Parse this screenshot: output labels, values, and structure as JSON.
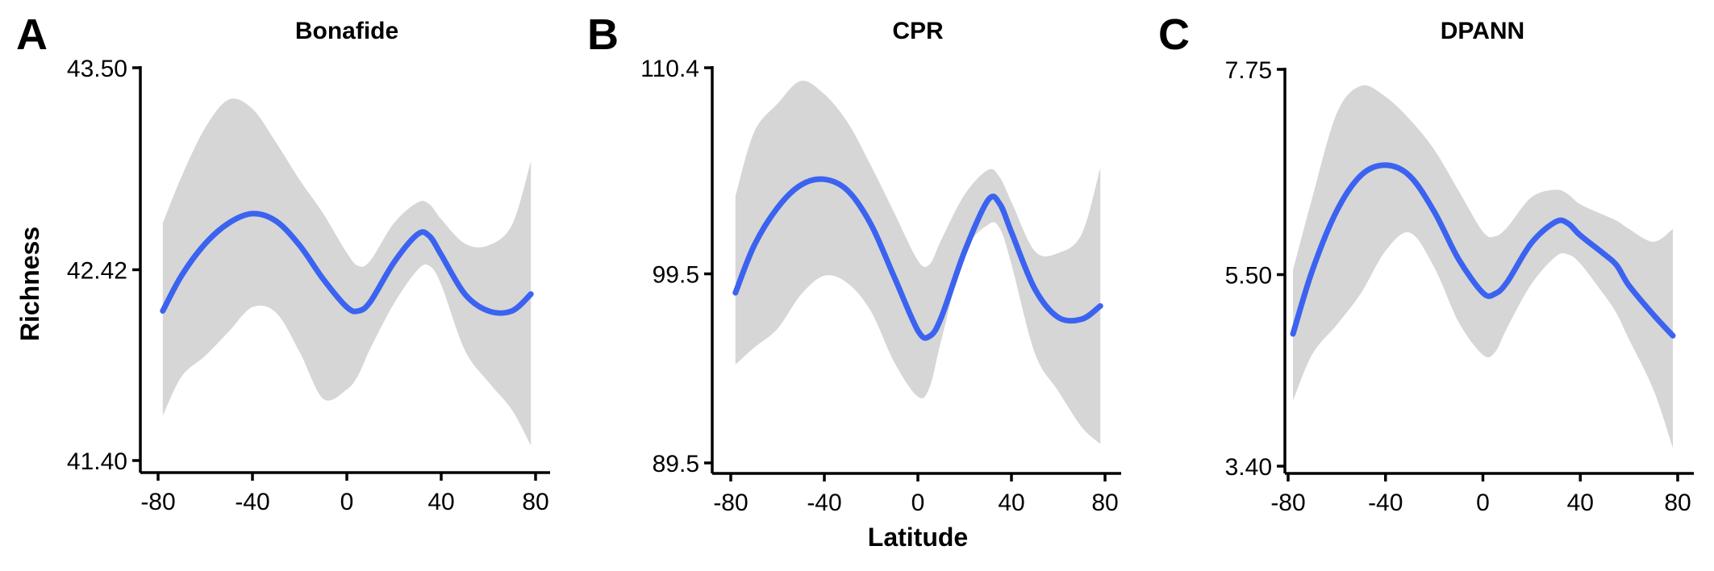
{
  "figure": {
    "xlabel": "Latitude",
    "ylabel": "Richness"
  },
  "chart_data": [
    {
      "type": "line",
      "panel": "A",
      "title": "Bonafide",
      "xlim": [
        -80,
        80
      ],
      "xticks": [
        -80,
        -40,
        0,
        40,
        80
      ],
      "xtick_labels": [
        "-80",
        "-40",
        "0",
        "40",
        "80"
      ],
      "ylim": [
        41.4,
        43.5
      ],
      "yticks": [
        41.4,
        42.42,
        43.5
      ],
      "ytick_labels": [
        "41.40",
        "42.42",
        "43.50"
      ],
      "grid": false,
      "x": [
        -78,
        -70,
        -60,
        -50,
        -40,
        -30,
        -20,
        -10,
        0,
        5,
        10,
        20,
        30,
        35,
        40,
        50,
        60,
        70,
        78
      ],
      "y": [
        42.2,
        42.39,
        42.56,
        42.67,
        42.72,
        42.68,
        42.55,
        42.37,
        42.22,
        42.2,
        42.25,
        42.46,
        42.61,
        42.6,
        42.5,
        42.29,
        42.2,
        42.2,
        42.29
      ],
      "upper": [
        42.67,
        42.92,
        43.18,
        43.33,
        43.28,
        43.1,
        42.9,
        42.72,
        42.51,
        42.44,
        42.47,
        42.67,
        42.78,
        42.77,
        42.69,
        42.56,
        42.55,
        42.66,
        43.0
      ],
      "lower": [
        41.64,
        41.85,
        41.96,
        42.09,
        42.22,
        42.19,
        41.98,
        41.73,
        41.78,
        41.86,
        42.0,
        42.24,
        42.42,
        42.44,
        42.34,
        41.99,
        41.82,
        41.67,
        41.48
      ]
    },
    {
      "type": "line",
      "panel": "B",
      "title": "CPR",
      "xlim": [
        -80,
        80
      ],
      "xticks": [
        -80,
        -40,
        0,
        40,
        80
      ],
      "xtick_labels": [
        "-80",
        "-40",
        "0",
        "40",
        "80"
      ],
      "ylim": [
        89.5,
        110.4
      ],
      "yticks": [
        89.5,
        99.5,
        110.4
      ],
      "ytick_labels": [
        "89.5",
        "99.5",
        "110.4"
      ],
      "grid": false,
      "x": [
        -78,
        -70,
        -60,
        -50,
        -40,
        -30,
        -20,
        -10,
        0,
        5,
        10,
        20,
        30,
        35,
        40,
        50,
        60,
        70,
        78
      ],
      "y": [
        98.5,
        101.0,
        103.0,
        104.2,
        104.5,
        103.9,
        102.1,
        99.3,
        96.5,
        96.2,
        97.2,
        100.7,
        103.4,
        103.2,
        101.7,
        98.7,
        97.2,
        97.1,
        97.8
      ],
      "upper": [
        103.6,
        107.0,
        108.5,
        109.7,
        109.0,
        107.5,
        105.2,
        102.7,
        100.2,
        100.0,
        101.3,
        103.7,
        105.0,
        104.6,
        103.3,
        100.7,
        100.6,
        101.6,
        105.1
      ],
      "lower": [
        94.7,
        95.6,
        96.6,
        98.4,
        99.4,
        99.0,
        97.5,
        94.8,
        93.0,
        93.5,
        96.0,
        100.6,
        102.1,
        101.9,
        100.0,
        95.3,
        93.3,
        91.4,
        90.5
      ]
    },
    {
      "type": "line",
      "panel": "C",
      "title": "DPANN",
      "xlim": [
        -80,
        80
      ],
      "xticks": [
        -80,
        -40,
        0,
        40,
        80
      ],
      "xtick_labels": [
        "-80",
        "-40",
        "0",
        "40",
        "80"
      ],
      "ylim": [
        3.4,
        7.75
      ],
      "yticks": [
        3.4,
        5.5,
        7.75
      ],
      "ytick_labels": [
        "3.40",
        "5.50",
        "7.75"
      ],
      "grid": false,
      "x": [
        -78,
        -70,
        -60,
        -50,
        -40,
        -30,
        -20,
        -10,
        0,
        5,
        10,
        20,
        30,
        35,
        40,
        50,
        55,
        60,
        70,
        78
      ],
      "y": [
        4.85,
        5.55,
        6.2,
        6.59,
        6.7,
        6.58,
        6.19,
        5.67,
        5.3,
        5.29,
        5.42,
        5.85,
        6.08,
        6.06,
        5.93,
        5.72,
        5.6,
        5.38,
        5.06,
        4.83
      ],
      "upper": [
        5.55,
        6.35,
        7.27,
        7.57,
        7.45,
        7.2,
        6.87,
        6.42,
        5.97,
        5.92,
        6.02,
        6.35,
        6.43,
        6.38,
        6.27,
        6.15,
        6.09,
        6.0,
        5.86,
        6.0
      ],
      "lower": [
        4.12,
        4.63,
        4.95,
        5.3,
        5.76,
        5.96,
        5.58,
        4.98,
        4.62,
        4.65,
        4.92,
        5.4,
        5.7,
        5.72,
        5.62,
        5.27,
        5.07,
        4.79,
        4.24,
        3.6
      ]
    }
  ]
}
